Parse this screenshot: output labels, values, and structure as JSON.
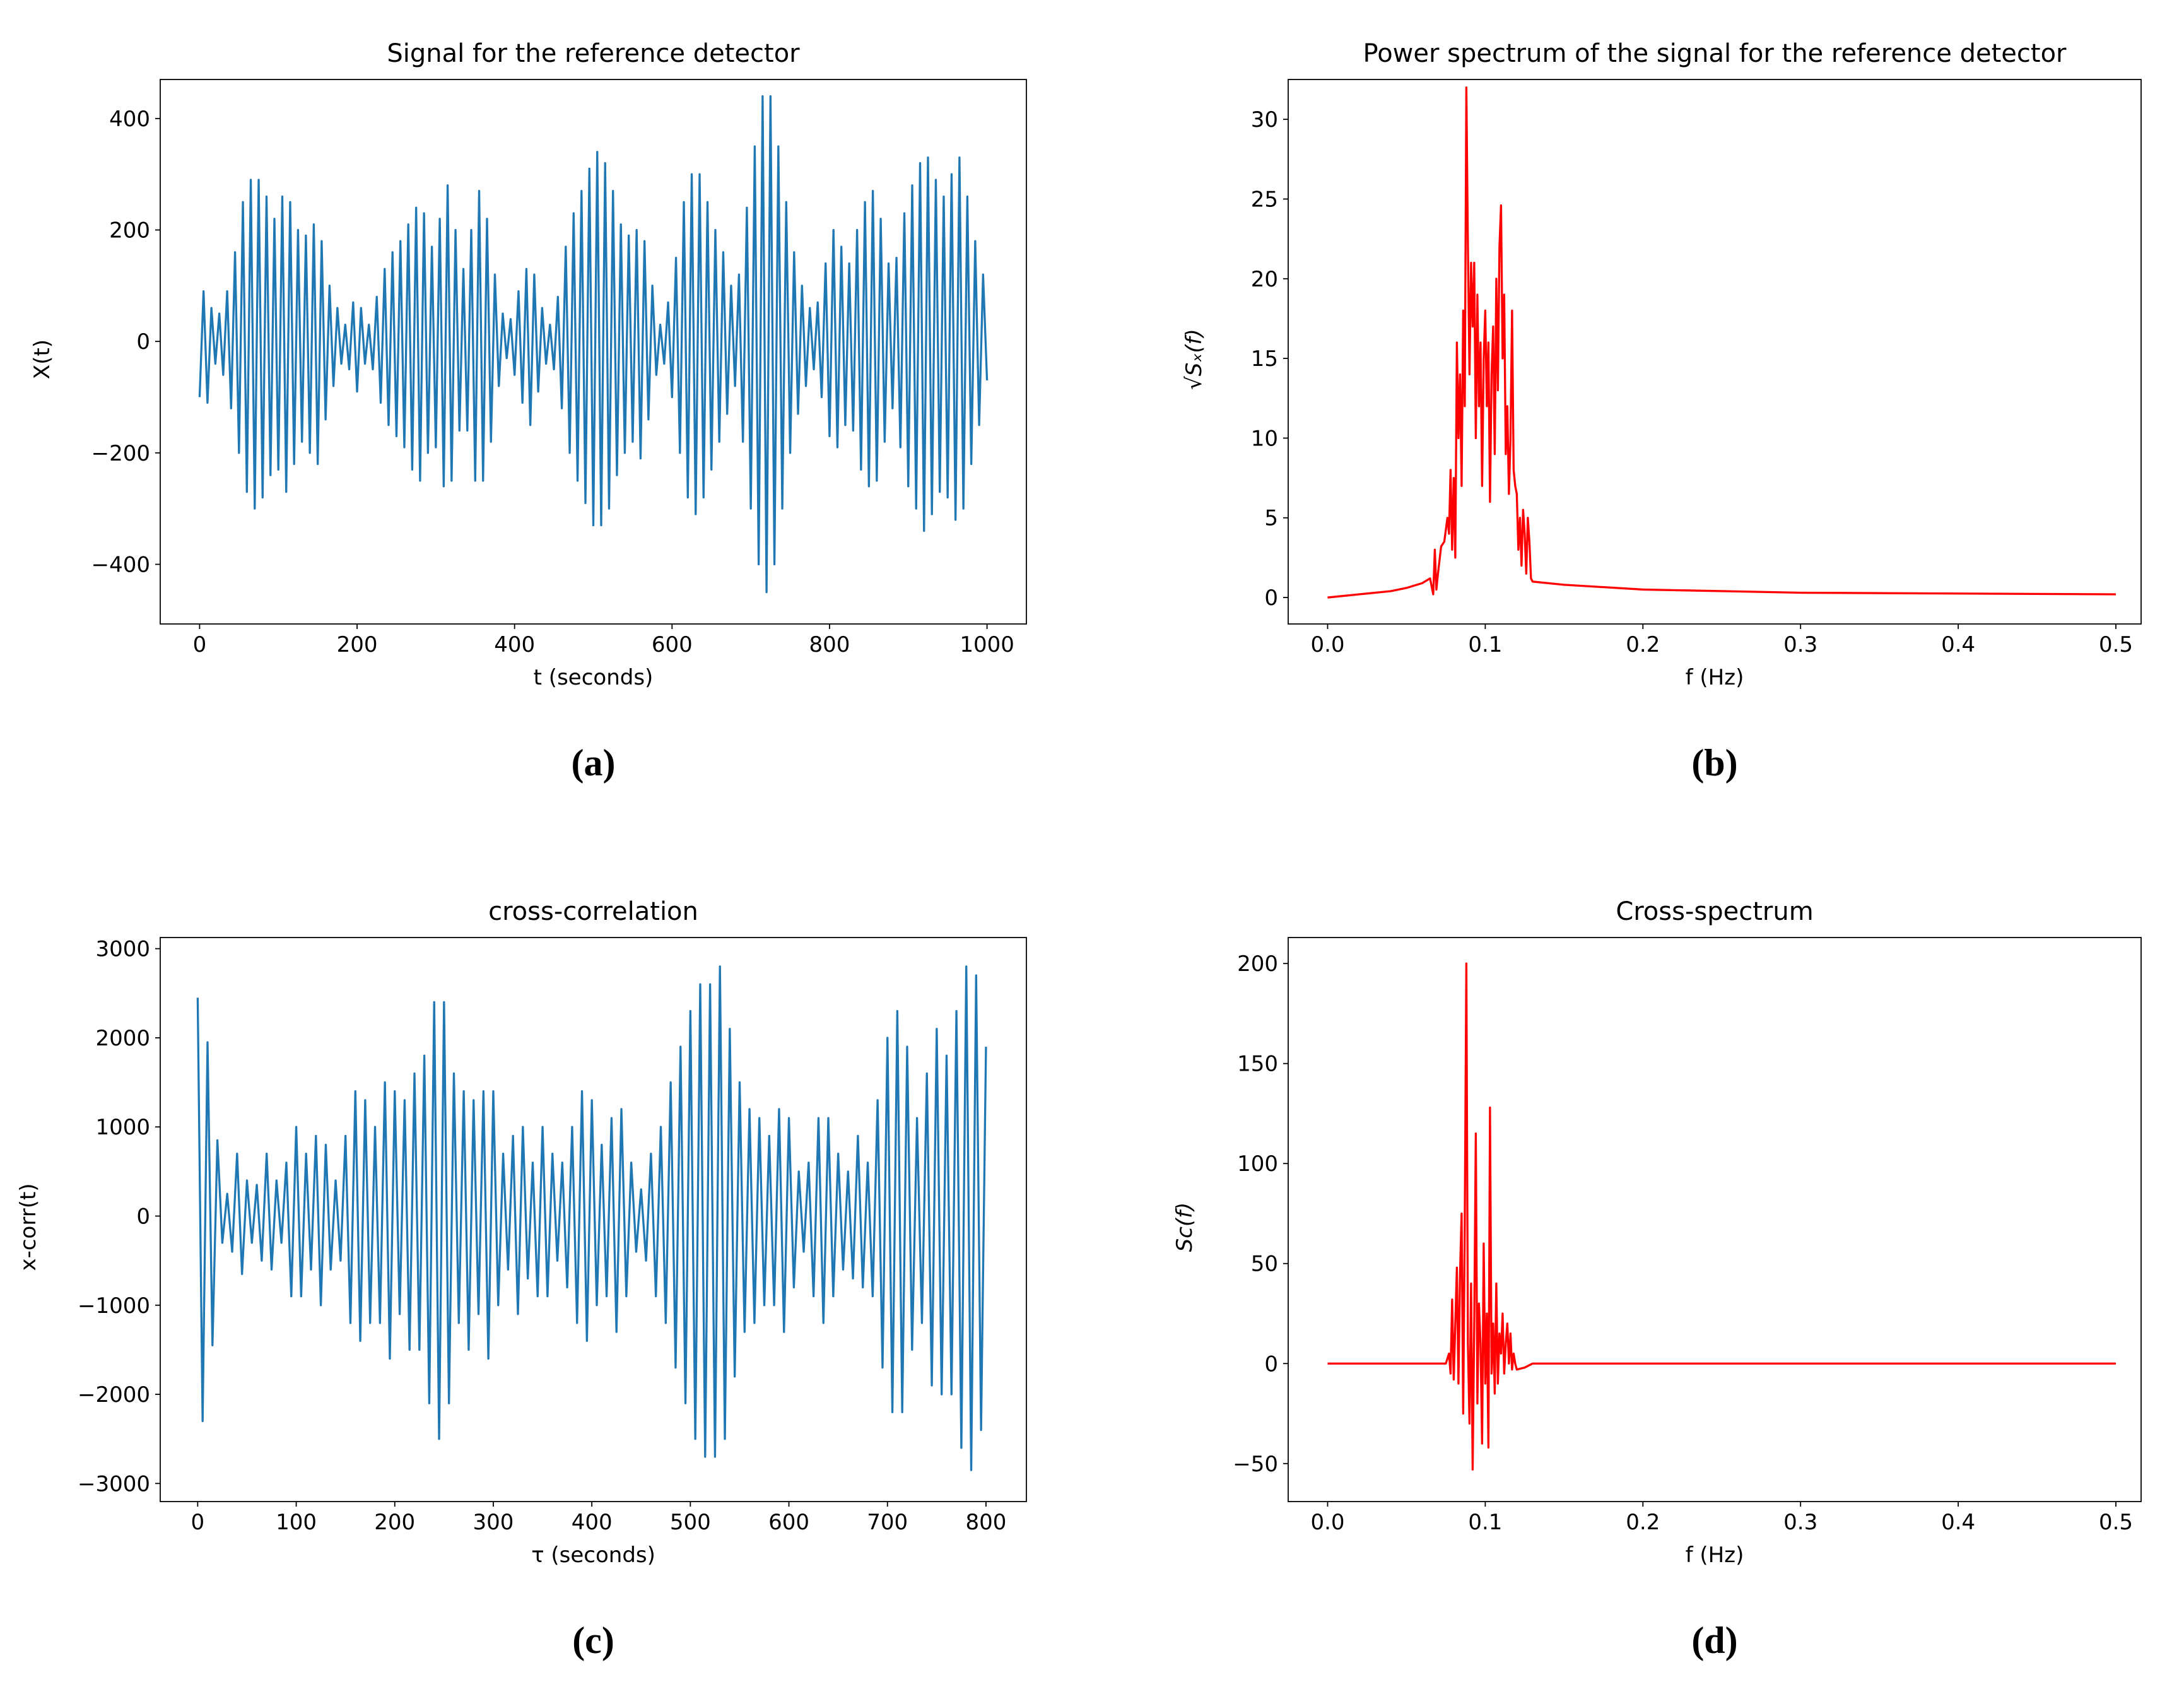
{
  "chart_data": [
    {
      "type": "line",
      "title": "Signal for the reference detector",
      "xlabel": "t (seconds)",
      "ylabel": "X(t)",
      "panel_label": "(a)",
      "color": "#1f77b4",
      "xlim": [
        -50,
        1050
      ],
      "xticks": [
        0,
        200,
        400,
        600,
        800,
        1000
      ],
      "ylim": [
        -507,
        470
      ],
      "yticks": [
        {
          "value": -400,
          "label": "−400"
        },
        {
          "value": -200,
          "label": "−200"
        },
        0,
        200,
        400
      ],
      "x": [
        0,
        5,
        10,
        15,
        20,
        25,
        30,
        35,
        40,
        45,
        50,
        55,
        60,
        65,
        70,
        75,
        80,
        85,
        90,
        95,
        100,
        105,
        110,
        115,
        120,
        125,
        130,
        135,
        140,
        145,
        150,
        155,
        160,
        165,
        170,
        175,
        180,
        185,
        190,
        195,
        200,
        205,
        210,
        215,
        220,
        225,
        230,
        235,
        240,
        245,
        250,
        255,
        260,
        265,
        270,
        275,
        280,
        285,
        290,
        295,
        300,
        305,
        310,
        315,
        320,
        325,
        330,
        335,
        340,
        345,
        350,
        355,
        360,
        365,
        370,
        375,
        380,
        385,
        390,
        395,
        400,
        405,
        410,
        415,
        420,
        425,
        430,
        435,
        440,
        445,
        450,
        455,
        460,
        465,
        470,
        475,
        480,
        485,
        490,
        495,
        500,
        505,
        510,
        515,
        520,
        525,
        530,
        535,
        540,
        545,
        550,
        555,
        560,
        565,
        570,
        575,
        580,
        585,
        590,
        595,
        600,
        605,
        610,
        615,
        620,
        625,
        630,
        635,
        640,
        645,
        650,
        655,
        660,
        665,
        670,
        675,
        680,
        685,
        690,
        695,
        700,
        705,
        710,
        715,
        720,
        725,
        730,
        735,
        740,
        745,
        750,
        755,
        760,
        765,
        770,
        775,
        780,
        785,
        790,
        795,
        800,
        805,
        810,
        815,
        820,
        825,
        830,
        835,
        840,
        845,
        850,
        855,
        860,
        865,
        870,
        875,
        880,
        885,
        890,
        895,
        900,
        905,
        910,
        915,
        920,
        925,
        930,
        935,
        940,
        945,
        950,
        955,
        960,
        965,
        970,
        975,
        980,
        985,
        990,
        995,
        1000
      ],
      "values": [
        -100,
        90,
        -110,
        60,
        -40,
        50,
        -60,
        90,
        -120,
        160,
        -200,
        250,
        -270,
        290,
        -300,
        290,
        -280,
        260,
        -240,
        220,
        -230,
        260,
        -270,
        250,
        -220,
        200,
        -180,
        190,
        -200,
        210,
        -220,
        180,
        -140,
        100,
        -80,
        60,
        -40,
        30,
        -50,
        70,
        -90,
        60,
        -40,
        30,
        -50,
        80,
        -110,
        130,
        -150,
        160,
        -170,
        180,
        -190,
        210,
        -230,
        240,
        -250,
        230,
        -200,
        170,
        -190,
        220,
        -260,
        280,
        -250,
        200,
        -160,
        130,
        -160,
        200,
        -250,
        270,
        -250,
        220,
        -180,
        120,
        -80,
        50,
        -30,
        40,
        -60,
        90,
        -110,
        130,
        -150,
        120,
        -90,
        60,
        -40,
        30,
        -50,
        80,
        -120,
        170,
        -200,
        230,
        -250,
        270,
        -290,
        310,
        -330,
        340,
        -330,
        320,
        -300,
        270,
        -240,
        210,
        -200,
        190,
        -180,
        200,
        -210,
        180,
        -140,
        100,
        -60,
        30,
        -40,
        70,
        -100,
        150,
        -200,
        250,
        -280,
        300,
        -310,
        300,
        -280,
        250,
        -230,
        200,
        -180,
        160,
        -130,
        100,
        -80,
        120,
        -180,
        240,
        -300,
        350,
        -400,
        440,
        -450,
        440,
        -400,
        350,
        -300,
        250,
        -200,
        160,
        -130,
        100,
        -80,
        60,
        -50,
        70,
        -100,
        140,
        -170,
        200,
        -190,
        170,
        -150,
        140,
        -160,
        200,
        -230,
        250,
        -260,
        270,
        -250,
        220,
        -180,
        140,
        -120,
        150,
        -190,
        230,
        -260,
        280,
        -300,
        320,
        -340,
        330,
        -310,
        290,
        -270,
        260,
        -280,
        300,
        -320,
        330,
        -300,
        260,
        -220,
        180,
        -150,
        120,
        -70
      ]
    },
    {
      "type": "line",
      "title": "Power spectrum of the signal for the reference detector",
      "xlabel": "f (Hz)",
      "ylabel": "√Sₓ(f)",
      "panel_label": "(b)",
      "color": "#ff0000",
      "xlim": [
        -0.025,
        0.516
      ],
      "xticks": [
        {
          "value": 0,
          "label": "0.0"
        },
        0.1,
        0.2,
        0.3,
        0.4,
        0.5
      ],
      "ylim": [
        -1.66,
        32.5
      ],
      "yticks": [
        0,
        5,
        10,
        15,
        20,
        25,
        30
      ],
      "x": [
        0,
        0.02,
        0.04,
        0.05,
        0.06,
        0.065,
        0.067,
        0.068,
        0.069,
        0.07,
        0.072,
        0.074,
        0.076,
        0.077,
        0.078,
        0.079,
        0.08,
        0.081,
        0.082,
        0.083,
        0.084,
        0.085,
        0.086,
        0.087,
        0.088,
        0.089,
        0.09,
        0.091,
        0.092,
        0.093,
        0.094,
        0.095,
        0.096,
        0.097,
        0.098,
        0.099,
        0.1,
        0.101,
        0.102,
        0.103,
        0.104,
        0.105,
        0.106,
        0.107,
        0.108,
        0.109,
        0.11,
        0.111,
        0.112,
        0.113,
        0.114,
        0.115,
        0.116,
        0.117,
        0.118,
        0.119,
        0.12,
        0.121,
        0.122,
        0.123,
        0.124,
        0.125,
        0.126,
        0.127,
        0.128,
        0.129,
        0.13,
        0.14,
        0.15,
        0.2,
        0.3,
        0.4,
        0.5
      ],
      "values": [
        0,
        0.2,
        0.4,
        0.6,
        0.9,
        1.2,
        0.2,
        3.0,
        0.5,
        1.5,
        3.2,
        3.5,
        5,
        4,
        8,
        3,
        7.5,
        2.5,
        16,
        10,
        14,
        7,
        18,
        12,
        32,
        22,
        14,
        21,
        17,
        21,
        10,
        19,
        12,
        16,
        7,
        15,
        18,
        12,
        16,
        6,
        14,
        17,
        9,
        20,
        13,
        22,
        24.6,
        15,
        19,
        9,
        12,
        6.5,
        10,
        18,
        8,
        7,
        6.5,
        3,
        5,
        2,
        5.5,
        4,
        1.5,
        5,
        3.5,
        1.2,
        1.0,
        0.9,
        0.8,
        0.5,
        0.3,
        0.25,
        0.2
      ]
    },
    {
      "type": "line",
      "title": "cross-correlation",
      "xlabel": "τ (seconds)",
      "ylabel": "x-corr(t)",
      "panel_label": "(c)",
      "color": "#1f77b4",
      "xlim": [
        -38,
        841
      ],
      "xticks": [
        0,
        100,
        200,
        300,
        400,
        500,
        600,
        700,
        800
      ],
      "ylim": [
        -3203,
        3125
      ],
      "yticks": [
        {
          "value": -3000,
          "label": "−3000"
        },
        {
          "value": -2000,
          "label": "−2000"
        },
        {
          "value": -1000,
          "label": "−1000"
        },
        0,
        1000,
        2000,
        3000
      ],
      "x": [
        0,
        5,
        10,
        15,
        20,
        25,
        30,
        35,
        40,
        45,
        50,
        55,
        60,
        65,
        70,
        75,
        80,
        85,
        90,
        95,
        100,
        105,
        110,
        115,
        120,
        125,
        130,
        135,
        140,
        145,
        150,
        155,
        160,
        165,
        170,
        175,
        180,
        185,
        190,
        195,
        200,
        205,
        210,
        215,
        220,
        225,
        230,
        235,
        240,
        245,
        250,
        255,
        260,
        265,
        270,
        275,
        280,
        285,
        290,
        295,
        300,
        305,
        310,
        315,
        320,
        325,
        330,
        335,
        340,
        345,
        350,
        355,
        360,
        365,
        370,
        375,
        380,
        385,
        390,
        395,
        400,
        405,
        410,
        415,
        420,
        425,
        430,
        435,
        440,
        445,
        450,
        455,
        460,
        465,
        470,
        475,
        480,
        485,
        490,
        495,
        500,
        505,
        510,
        515,
        520,
        525,
        530,
        535,
        540,
        545,
        550,
        555,
        560,
        565,
        570,
        575,
        580,
        585,
        590,
        595,
        600,
        605,
        610,
        615,
        620,
        625,
        630,
        635,
        640,
        645,
        650,
        655,
        660,
        665,
        670,
        675,
        680,
        685,
        690,
        695,
        700,
        705,
        710,
        715,
        720,
        725,
        730,
        735,
        740,
        745,
        750,
        755,
        760,
        765,
        770,
        775,
        780,
        785,
        790,
        795,
        800
      ],
      "values": [
        2450,
        -2300,
        1950,
        -1450,
        850,
        -300,
        250,
        -400,
        700,
        -650,
        400,
        -300,
        350,
        -500,
        700,
        -600,
        400,
        -300,
        600,
        -900,
        1000,
        -900,
        700,
        -600,
        900,
        -1000,
        800,
        -600,
        400,
        -500,
        900,
        -1200,
        1400,
        -1400,
        1300,
        -1200,
        1000,
        -1200,
        1500,
        -1600,
        1400,
        -1100,
        1300,
        -1500,
        1600,
        -1500,
        1800,
        -2100,
        2400,
        -2500,
        2400,
        -2100,
        1600,
        -1200,
        1400,
        -1500,
        1300,
        -1100,
        1400,
        -1600,
        1400,
        -1000,
        700,
        -600,
        900,
        -1100,
        1000,
        -700,
        600,
        -900,
        1000,
        -900,
        700,
        -500,
        600,
        -800,
        1000,
        -1200,
        1400,
        -1400,
        1300,
        -1000,
        800,
        -900,
        1100,
        -1300,
        1200,
        -900,
        600,
        -400,
        300,
        -500,
        700,
        -900,
        1000,
        -1200,
        1500,
        -1700,
        1900,
        -2100,
        2300,
        -2500,
        2600,
        -2700,
        2600,
        -2700,
        2800,
        -2500,
        2100,
        -1800,
        1500,
        -1300,
        1200,
        -1200,
        1100,
        -1000,
        900,
        -1000,
        1200,
        -1300,
        1100,
        -800,
        500,
        -400,
        600,
        -900,
        1100,
        -1200,
        1100,
        -900,
        700,
        -600,
        500,
        -700,
        900,
        -800,
        600,
        -900,
        1300,
        -1700,
        2000,
        -2200,
        2300,
        -2200,
        1900,
        -1500,
        1100,
        -1200,
        1600,
        -1900,
        2100,
        -2000,
        1800,
        -2000,
        2300,
        -2600,
        2800,
        -2850,
        2700,
        -2400,
        1900
      ]
    },
    {
      "type": "line",
      "title": "Cross-spectrum",
      "xlabel": "f (Hz)",
      "ylabel": "Sc(f)",
      "panel_label": "(d)",
      "color": "#ff0000",
      "xlim": [
        -0.025,
        0.516
      ],
      "xticks": [
        {
          "value": 0,
          "label": "0.0"
        },
        0.1,
        0.2,
        0.3,
        0.4,
        0.5
      ],
      "ylim": [
        -69,
        213
      ],
      "yticks": [
        {
          "value": -50,
          "label": "−50"
        },
        0,
        50,
        100,
        150,
        200
      ],
      "x": [
        0,
        0.075,
        0.077,
        0.078,
        0.079,
        0.08,
        0.081,
        0.082,
        0.083,
        0.084,
        0.085,
        0.086,
        0.087,
        0.088,
        0.089,
        0.09,
        0.091,
        0.092,
        0.093,
        0.094,
        0.095,
        0.096,
        0.097,
        0.098,
        0.099,
        0.1,
        0.101,
        0.102,
        0.103,
        0.104,
        0.105,
        0.106,
        0.107,
        0.108,
        0.109,
        0.11,
        0.111,
        0.112,
        0.113,
        0.114,
        0.115,
        0.116,
        0.117,
        0.118,
        0.119,
        0.12,
        0.125,
        0.13,
        0.2,
        0.3,
        0.4,
        0.5
      ],
      "values": [
        0,
        0,
        5,
        -5,
        32,
        -8,
        20,
        48,
        -10,
        45,
        75,
        -25,
        70,
        200,
        10,
        -30,
        40,
        -53,
        20,
        115,
        -20,
        30,
        10,
        -40,
        60,
        -10,
        25,
        -42,
        128,
        -5,
        20,
        -15,
        40,
        -10,
        15,
        5,
        25,
        -5,
        10,
        20,
        0,
        15,
        -3,
        5,
        0,
        -3,
        -2,
        0,
        0,
        0,
        0,
        0
      ]
    }
  ]
}
